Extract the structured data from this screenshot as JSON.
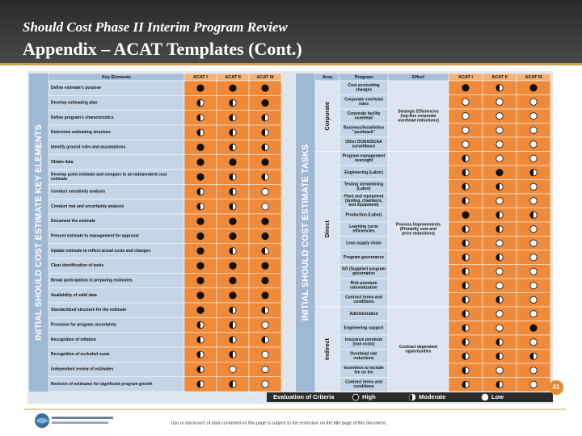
{
  "header": {
    "subtitle": "Should Cost Phase II Interim Program Review",
    "title": "Appendix – ACAT Templates (Cont.)"
  },
  "left_table": {
    "side_label": "INITIAL SHOULD COST ESTIMATE KEY ELEMENTS",
    "columns": [
      "Key Elements",
      "ACAT I",
      "ACAT II",
      "ACAT III"
    ],
    "rows": [
      {
        "label": "Define estimate's purpose",
        "ratings": [
          "H",
          "H",
          "H"
        ]
      },
      {
        "label": "Develop estimating plan",
        "ratings": [
          "M",
          "M",
          "H"
        ]
      },
      {
        "label": "Define program's characteristics",
        "ratings": [
          "M",
          "M",
          "M"
        ]
      },
      {
        "label": "Determine estimating structure",
        "ratings": [
          "M",
          "M",
          "M"
        ]
      },
      {
        "label": "Identify ground rules and assumptions",
        "ratings": [
          "H",
          "M",
          "M"
        ]
      },
      {
        "label": "Obtain data",
        "ratings": [
          "H",
          "H",
          "H"
        ]
      },
      {
        "label": "Develop point estimate and compare to an independent cost estimate",
        "ratings": [
          "H",
          "M",
          "M"
        ]
      },
      {
        "label": "Conduct sensitivity analysis",
        "ratings": [
          "M",
          "M",
          "L"
        ]
      },
      {
        "label": "Conduct risk and uncertainty analysis",
        "ratings": [
          "M",
          "M",
          "L"
        ]
      },
      {
        "label": "Document the estimate",
        "ratings": [
          "H",
          "H",
          "H"
        ]
      },
      {
        "label": "Present estimate to management for approval",
        "ratings": [
          "H",
          "H",
          "H"
        ]
      },
      {
        "label": "Update estimate to reflect actual costs and changes",
        "ratings": [
          "H",
          "M",
          "M"
        ]
      },
      {
        "label": "Clear identification of tasks",
        "ratings": [
          "H",
          "H",
          "H"
        ]
      },
      {
        "label": "Broad participation in preparing estimates",
        "ratings": [
          "H",
          "H",
          "H"
        ]
      },
      {
        "label": "Availability of valid data",
        "ratings": [
          "H",
          "H",
          "H"
        ]
      },
      {
        "label": "Standardized structure for the estimate",
        "ratings": [
          "H",
          "M",
          "M"
        ]
      },
      {
        "label": "Provision for program uncertainty",
        "ratings": [
          "M",
          "M",
          "L"
        ]
      },
      {
        "label": "Recognition of inflation",
        "ratings": [
          "M",
          "M",
          "M"
        ]
      },
      {
        "label": "Recognition of excluded costs",
        "ratings": [
          "M",
          "M",
          "L"
        ]
      },
      {
        "label": "Independent review of estimates",
        "ratings": [
          "M",
          "L",
          "L"
        ]
      },
      {
        "label": "Revision of estimates for significant program growth",
        "ratings": [
          "M",
          "M",
          "L"
        ]
      }
    ]
  },
  "right_table": {
    "side_label": "INITIAL SHOULD COST ESTIMATE TASKS",
    "columns": [
      "Area",
      "Program",
      "Effect",
      "ACAT I",
      "ACAT II",
      "ACAT III"
    ],
    "groups": [
      {
        "area": "Corporate",
        "effect": "Strategic Efficiencies (top-line corporate overhead reductions)",
        "rows": [
          {
            "task": "Cost accounting changes",
            "ratings": [
              "H",
              "M",
              "H"
            ]
          },
          {
            "task": "Corporate overhead rates",
            "ratings": [
              "L",
              "L",
              "L"
            ]
          },
          {
            "task": "Corporate facility overhead",
            "ratings": [
              "L",
              "L",
              "L"
            ]
          },
          {
            "task": "Business/Installation \"pushback\"",
            "ratings": [
              "L",
              "L",
              "L"
            ]
          },
          {
            "task": "Other DCMA/DCAA surveillance",
            "ratings": [
              "L",
              "L",
              "L"
            ]
          }
        ]
      },
      {
        "area": "Direct",
        "effect": "Process Improvements (Primarily cost and price reductions)",
        "rows": [
          {
            "task": "Program management oversight",
            "ratings": [
              "M",
              "L",
              "L"
            ]
          },
          {
            "task": "Engineering (Labor)",
            "ratings": [
              "M",
              "H",
              "M"
            ]
          },
          {
            "task": "Testing streamlining (Labor)",
            "ratings": [
              "M",
              "M",
              "L"
            ]
          },
          {
            "task": "Plant and equipment (tooling, chambers, test equipment)",
            "ratings": [
              "M",
              "L",
              "L"
            ]
          },
          {
            "task": "Production (Labor)",
            "ratings": [
              "H",
              "M",
              "M"
            ]
          },
          {
            "task": "Learning curve efficiencies",
            "ratings": [
              "M",
              "M",
              "L"
            ]
          },
          {
            "task": "Lean supply chain",
            "ratings": [
              "M",
              "L",
              "L"
            ]
          },
          {
            "task": "Program governance",
            "ratings": [
              "M",
              "M",
              "L"
            ]
          },
          {
            "task": "NO (Supplier) program governance",
            "ratings": [
              "M",
              "L",
              "L"
            ]
          },
          {
            "task": "Risk premium rationalization",
            "ratings": [
              "M",
              "L",
              "L"
            ]
          },
          {
            "task": "Contract terms and conditions",
            "ratings": [
              "M",
              "M",
              "L"
            ]
          }
        ]
      },
      {
        "area": "Indirect",
        "effect": "Contract dependent opportunities",
        "rows": [
          {
            "task": "Administration",
            "ratings": [
              "M",
              "L",
              "L"
            ]
          },
          {
            "task": "Engineering support",
            "ratings": [
              "M",
              "L",
              "H"
            ]
          },
          {
            "task": "Insurance premium (tool costs)",
            "ratings": [
              "M",
              "M",
              "L"
            ]
          },
          {
            "task": "Overhead rate reductions",
            "ratings": [
              "M",
              "M",
              "M"
            ]
          },
          {
            "task": "Incentives to include fee on fee",
            "ratings": [
              "M",
              "L",
              "L"
            ]
          },
          {
            "task": "Contract terms and conditions",
            "ratings": [
              "M",
              "M",
              "L"
            ]
          }
        ]
      }
    ]
  },
  "legend": {
    "title": "Evaluation of Criteria",
    "high": "High",
    "moderate": "Moderate",
    "low": "Low"
  },
  "footer": {
    "page_number": "41",
    "notice": "Use or disclosure of data contained on this page is subject to the restriction on the title page of this document."
  }
}
